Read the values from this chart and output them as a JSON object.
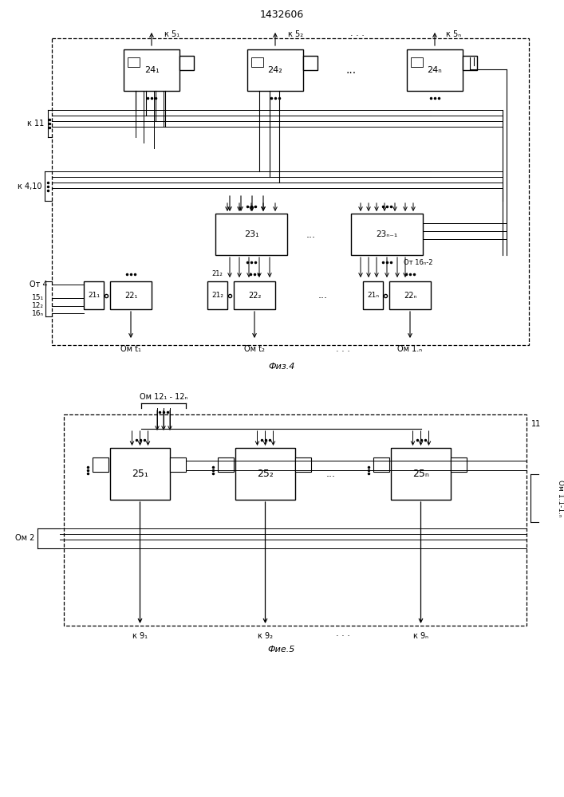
{
  "title": "1432606",
  "fig4_caption": "Физ.4",
  "fig5_caption": "Фие.5",
  "bg_color": "#ffffff",
  "lc": "#000000"
}
